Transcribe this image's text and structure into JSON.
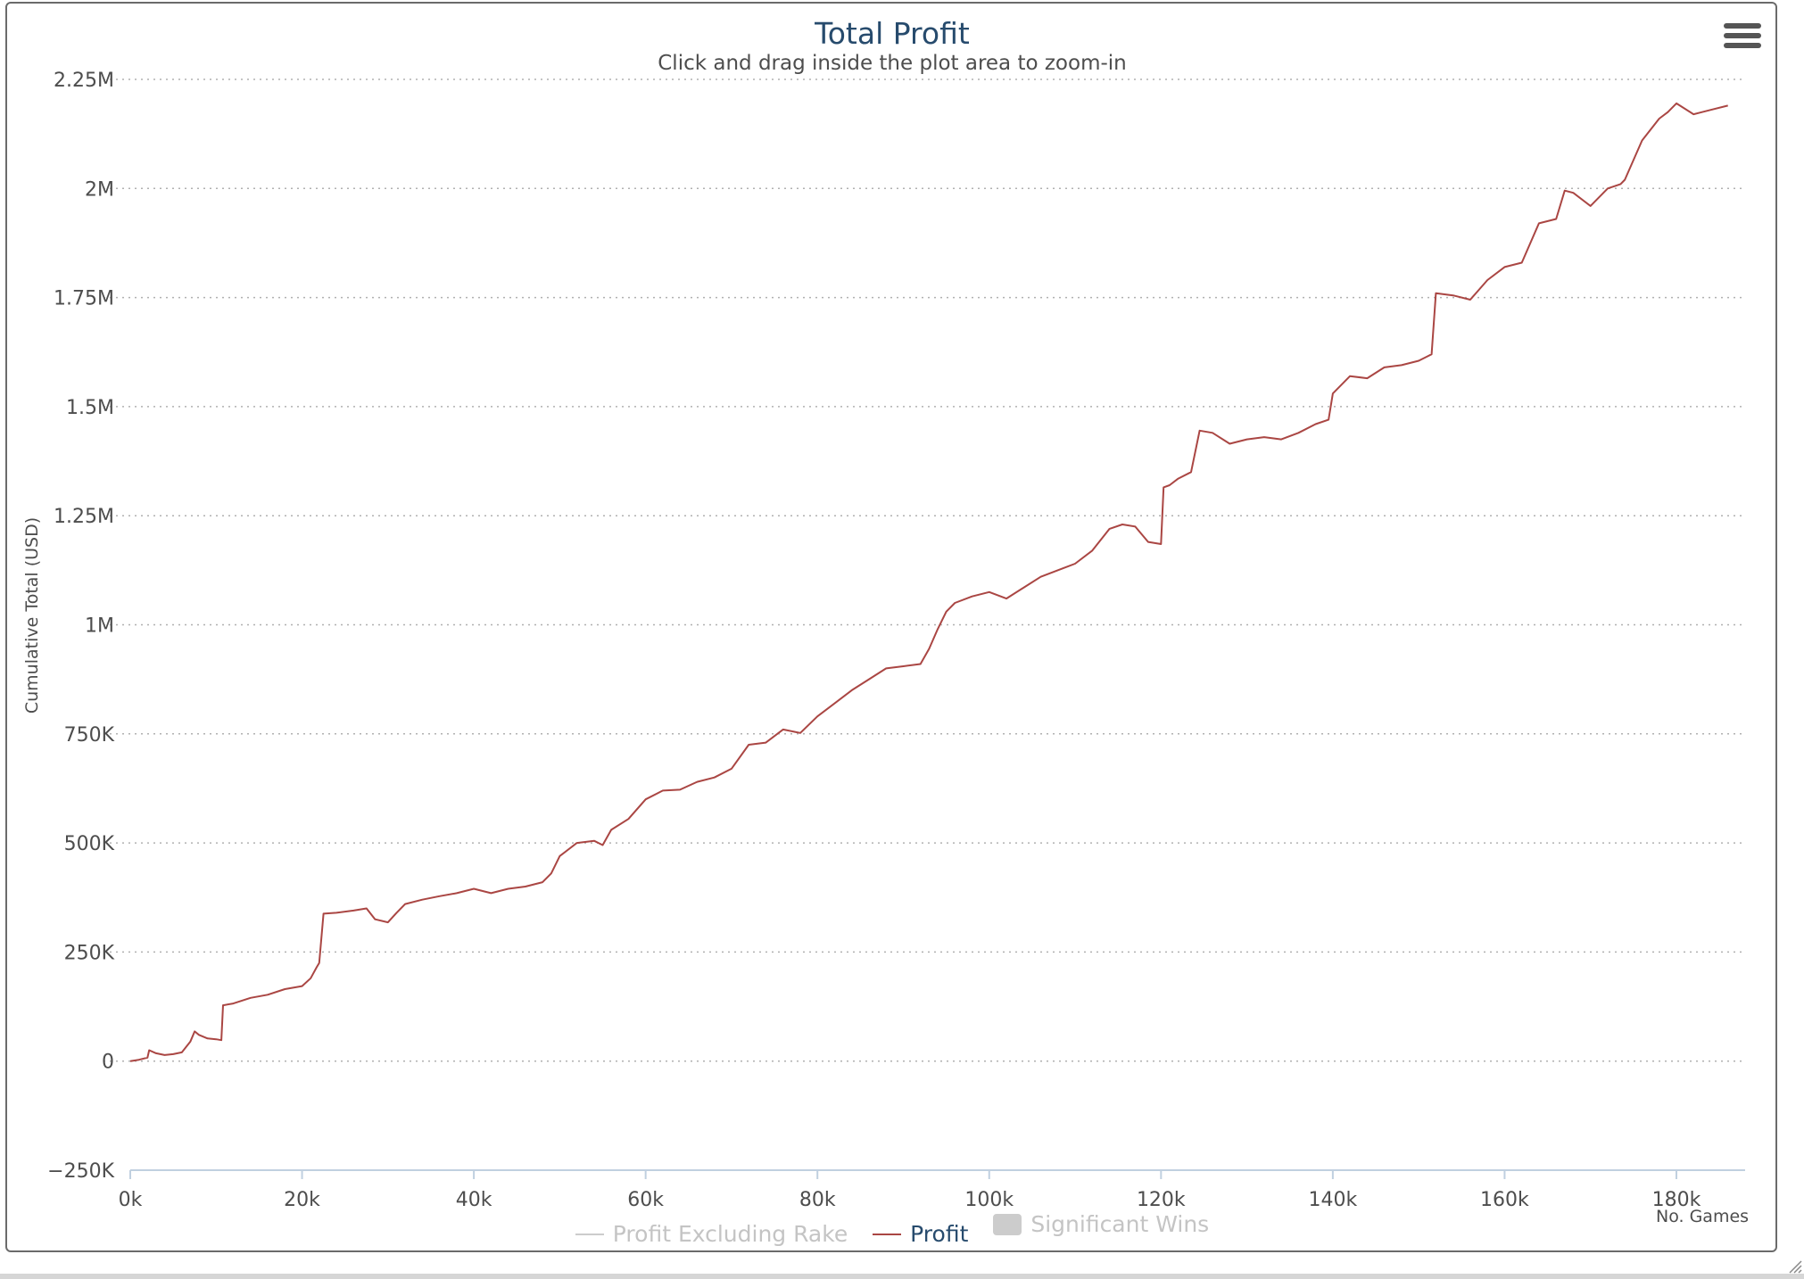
{
  "chart_data": {
    "type": "line",
    "title": "Total Profit",
    "subtitle": "Click and drag inside the plot area to zoom-in",
    "xlabel": "No. Games",
    "ylabel": "Cumulative Total (USD)",
    "xlim": [
      0,
      188000
    ],
    "ylim": [
      -250000,
      2250000
    ],
    "grid": true,
    "legend_position": "bottom",
    "x_ticks": [
      {
        "value": 0,
        "label": "0k"
      },
      {
        "value": 20000,
        "label": "20k"
      },
      {
        "value": 40000,
        "label": "40k"
      },
      {
        "value": 60000,
        "label": "60k"
      },
      {
        "value": 80000,
        "label": "80k"
      },
      {
        "value": 100000,
        "label": "100k"
      },
      {
        "value": 120000,
        "label": "120k"
      },
      {
        "value": 140000,
        "label": "140k"
      },
      {
        "value": 160000,
        "label": "160k"
      },
      {
        "value": 180000,
        "label": "180k"
      }
    ],
    "y_ticks": [
      {
        "value": 2250000,
        "label": "2.25M"
      },
      {
        "value": 2000000,
        "label": "2M"
      },
      {
        "value": 1750000,
        "label": "1.75M"
      },
      {
        "value": 1500000,
        "label": "1.5M"
      },
      {
        "value": 1250000,
        "label": "1.25M"
      },
      {
        "value": 1000000,
        "label": "1M"
      },
      {
        "value": 750000,
        "label": "750K"
      },
      {
        "value": 500000,
        "label": "500K"
      },
      {
        "value": 250000,
        "label": "250K"
      },
      {
        "value": 0,
        "label": "0"
      },
      {
        "value": -250000,
        "label": "−250K"
      }
    ],
    "legend": [
      {
        "name": "Profit Excluding Rake",
        "color": "#cccccc",
        "symbol": "line",
        "visible": false
      },
      {
        "name": "Profit",
        "color": "#aa4643",
        "symbol": "line",
        "visible": true
      },
      {
        "name": "Significant Wins",
        "color": "#cccccc",
        "symbol": "box",
        "visible": false
      }
    ],
    "series": [
      {
        "name": "Profit",
        "color": "#aa4643",
        "x": [
          0,
          1000,
          2000,
          2200,
          3000,
          4000,
          5000,
          6000,
          7000,
          7500,
          8000,
          9000,
          10000,
          10600,
          10800,
          12000,
          14000,
          16000,
          18000,
          20000,
          21000,
          21700,
          22000,
          22500,
          24000,
          26000,
          27500,
          28500,
          30000,
          31000,
          32000,
          34000,
          36000,
          38000,
          40000,
          42000,
          44000,
          46000,
          48000,
          49000,
          50000,
          52000,
          54000,
          55000,
          56000,
          58000,
          60000,
          62000,
          64000,
          66000,
          68000,
          70000,
          72000,
          74000,
          76000,
          78000,
          80000,
          82000,
          84000,
          86000,
          88000,
          90000,
          92000,
          93000,
          94000,
          95000,
          96000,
          98000,
          100000,
          102000,
          104000,
          106000,
          108000,
          110000,
          112000,
          114000,
          115500,
          117000,
          118500,
          120000,
          120300,
          121000,
          122000,
          123500,
          124500,
          126000,
          128000,
          130000,
          132000,
          134000,
          136000,
          138000,
          139500,
          140000,
          142000,
          144000,
          146000,
          148000,
          150000,
          151000,
          151500,
          152000,
          154000,
          156000,
          158000,
          160000,
          162000,
          164000,
          166000,
          167000,
          168000,
          170000,
          172000,
          173500,
          174000,
          176000,
          178000,
          179000,
          180000,
          182000,
          184000,
          186000
        ],
        "values": [
          0,
          3000,
          8000,
          25000,
          18000,
          14000,
          16000,
          20000,
          45000,
          68000,
          60000,
          52000,
          50000,
          48000,
          128000,
          132000,
          145000,
          152000,
          165000,
          172000,
          190000,
          215000,
          225000,
          338000,
          340000,
          345000,
          350000,
          325000,
          318000,
          340000,
          360000,
          370000,
          378000,
          385000,
          395000,
          385000,
          395000,
          400000,
          410000,
          430000,
          470000,
          500000,
          505000,
          495000,
          530000,
          555000,
          600000,
          620000,
          622000,
          640000,
          650000,
          670000,
          725000,
          730000,
          760000,
          752000,
          790000,
          820000,
          850000,
          875000,
          900000,
          905000,
          910000,
          945000,
          990000,
          1030000,
          1050000,
          1065000,
          1075000,
          1060000,
          1085000,
          1110000,
          1125000,
          1140000,
          1170000,
          1220000,
          1230000,
          1225000,
          1190000,
          1185000,
          1315000,
          1320000,
          1335000,
          1350000,
          1445000,
          1440000,
          1415000,
          1425000,
          1430000,
          1425000,
          1440000,
          1460000,
          1470000,
          1530000,
          1570000,
          1565000,
          1590000,
          1595000,
          1605000,
          1615000,
          1620000,
          1760000,
          1755000,
          1745000,
          1790000,
          1820000,
          1830000,
          1920000,
          1930000,
          1995000,
          1990000,
          1960000,
          2000000,
          2010000,
          2020000,
          2110000,
          2160000,
          2175000,
          2195000,
          2170000,
          2180000,
          2190000
        ]
      }
    ]
  }
}
